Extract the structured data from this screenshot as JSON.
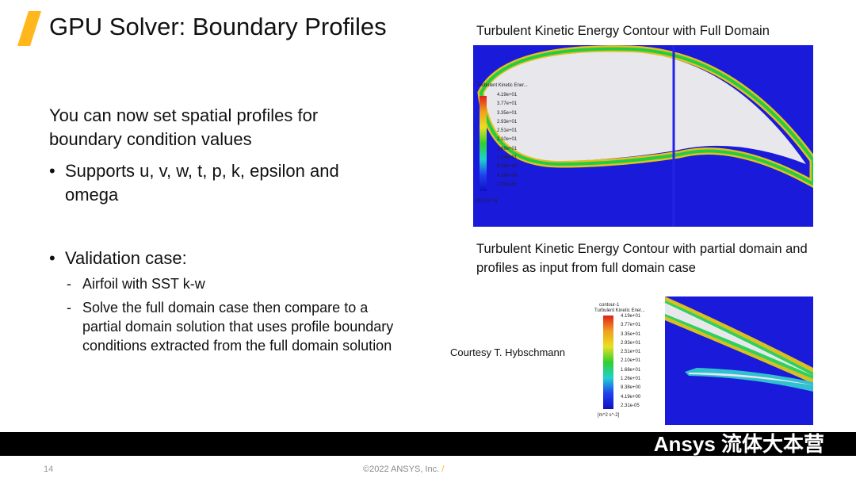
{
  "slide": {
    "title": "GPU Solver: Boundary Profiles",
    "intro": "You can now set spatial profiles for boundary condition values",
    "bullets": [
      {
        "text": "Supports u, v, w, t, p, k, epsilon and omega"
      },
      {
        "text": "Validation case:",
        "sub": [
          "Airfoil with SST k-w",
          "Solve the full domain case then compare to a partial domain solution that uses profile boundary conditions extracted from the full domain solution"
        ]
      }
    ],
    "caption_full": "Turbulent Kinetic Energy Contour with Full Domain",
    "caption_partial": "Turbulent Kinetic Energy Contour with partial domain and profiles as input from full domain case",
    "courtesy": "Courtesy T. Hybschmann",
    "page_number": "14",
    "copyright": "©2022 ANSYS, Inc.",
    "watermark": "Ansys 流体大本营"
  },
  "legend": {
    "name": "contour-1",
    "title": "Turbulent Kinetic Ener...",
    "values": [
      "4.19e+01",
      "3.77e+01",
      "3.35e+01",
      "2.93e+01",
      "2.51e+01",
      "2.10e+01",
      "1.68e+01",
      "1.26e+01",
      "8.38e+00",
      "4.19e+00",
      "2.31e-05"
    ],
    "unit": "[m^2 s^-2]"
  },
  "colors": {
    "accent": "#ffb71b",
    "contour_bg": "#1a1adb",
    "bar": "#000000"
  }
}
